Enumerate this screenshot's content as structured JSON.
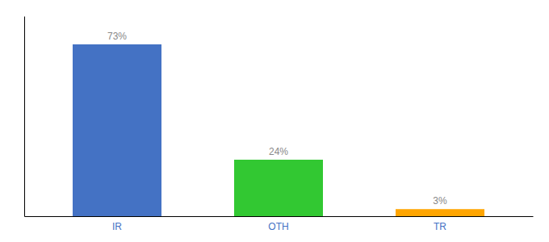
{
  "chart_data": {
    "type": "bar",
    "categories": [
      "IR",
      "OTH",
      "TR"
    ],
    "values": [
      73,
      24,
      3
    ],
    "value_labels": [
      "73%",
      "24%",
      "3%"
    ],
    "colors": [
      "#4472c4",
      "#32c832",
      "#ffa500"
    ],
    "ylim": [
      0,
      85
    ],
    "data_labels": true,
    "tick_labels": "x",
    "grid": false
  }
}
